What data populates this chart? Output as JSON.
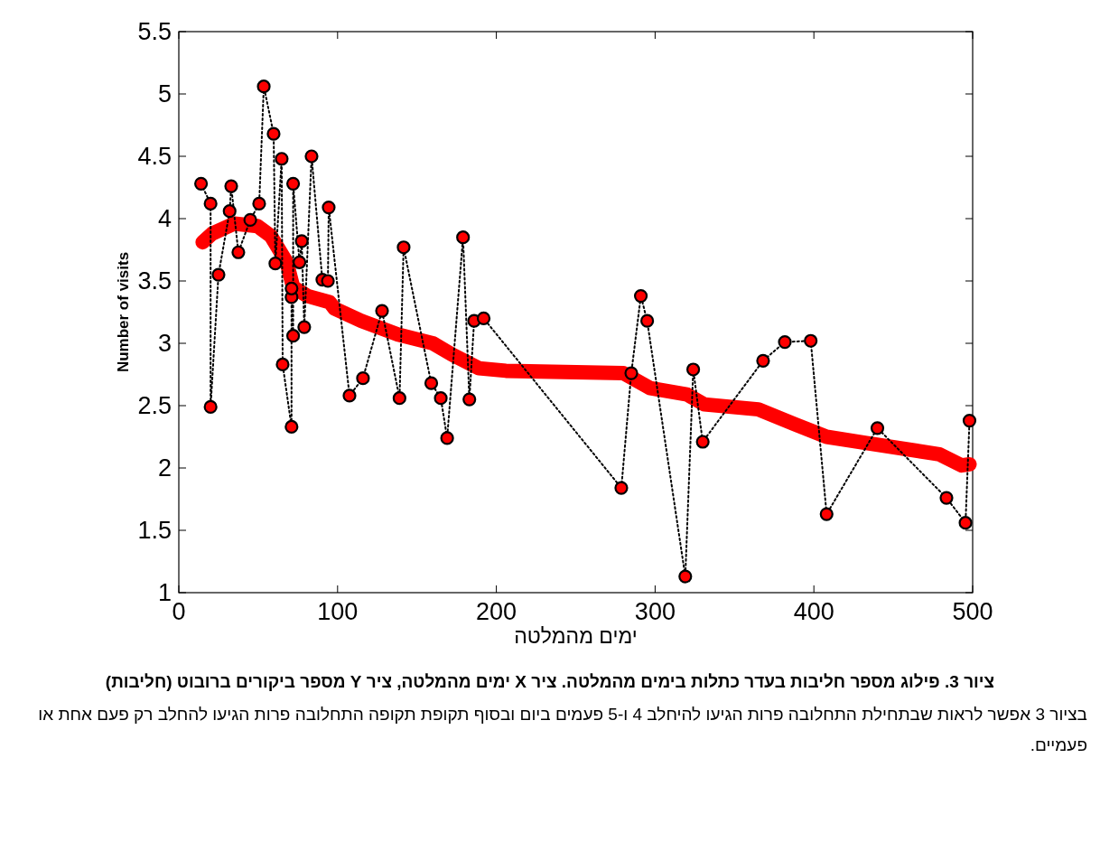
{
  "chart_data": {
    "type": "line",
    "xlabel": "ימים מהמלטה",
    "ylabel": "Number of visits",
    "xlim": [
      0,
      500
    ],
    "xticks": [
      0,
      100,
      200,
      300,
      400,
      500
    ],
    "ylim": [
      1,
      5.5
    ],
    "yticks": [
      1,
      1.5,
      2,
      2.5,
      3,
      3.5,
      4,
      4.5,
      5,
      5.5
    ],
    "grid": false,
    "series": [
      {
        "type": "line",
        "marker": "circle",
        "line_style": "dotted",
        "color": "#ff0000",
        "x": [
          14,
          20,
          20,
          25,
          32,
          33,
          37.5,
          45,
          50.6,
          53.5,
          59.7,
          60.8,
          64.8,
          65.4,
          71,
          71,
          71,
          72,
          72,
          76,
          77.4,
          79,
          83.6,
          90.4,
          93.9,
          94.4,
          107.5,
          116,
          128,
          139,
          141.6,
          159,
          165,
          169,
          179,
          183,
          186,
          192,
          278.7,
          285,
          291,
          295,
          319,
          324,
          330,
          368,
          381.7,
          398,
          408,
          440,
          483.5,
          495.5,
          498
        ],
        "values": [
          4.28,
          4.12,
          2.49,
          3.55,
          4.06,
          4.26,
          3.73,
          3.99,
          4.12,
          5.06,
          4.68,
          3.64,
          4.48,
          2.83,
          2.33,
          3.37,
          3.44,
          3.06,
          4.28,
          3.65,
          3.82,
          3.13,
          4.5,
          3.51,
          3.5,
          4.09,
          2.58,
          2.72,
          3.26,
          2.56,
          3.77,
          2.68,
          2.56,
          2.24,
          3.85,
          2.55,
          3.18,
          3.2,
          1.84,
          2.76,
          3.38,
          3.18,
          1.13,
          2.79,
          2.21,
          2.86,
          3.01,
          3.02,
          1.63,
          2.32,
          1.76,
          1.56,
          2.38
        ]
      },
      {
        "type": "line",
        "marker": "none",
        "line_style": "solid",
        "color": "#ff0000",
        "x": [
          15,
          21,
          35,
          49.5,
          58,
          68,
          72,
          81,
          95,
          98,
          115,
          138,
          160,
          172,
          189,
          206,
          280,
          297,
          320,
          331,
          365,
          388,
          408,
          433,
          479,
          493,
          498
        ],
        "values": [
          3.81,
          3.88,
          3.96,
          3.94,
          3.86,
          3.65,
          3.45,
          3.38,
          3.33,
          3.28,
          3.18,
          3.07,
          3.0,
          2.91,
          2.8,
          2.78,
          2.76,
          2.64,
          2.59,
          2.51,
          2.47,
          2.35,
          2.25,
          2.2,
          2.11,
          2.02,
          2.03
        ]
      }
    ],
    "annotations": [
      "ציור 3. פילוג מספר חליבות בעדר כתלות בימים מהמלטה. ציר X ימים מהמלטה, ציר Y מספר ביקורים ברובוט (חליבות)",
      "בציור 3 אפשר לראות שבתחילת התחלובה פרות הגיעו להיחלב 4 ו-5 פעמים ביום ובסוף תקופת תקופה התחלובה פרות הגיעו להחלב רק פעם אחת או פעמיים."
    ]
  }
}
